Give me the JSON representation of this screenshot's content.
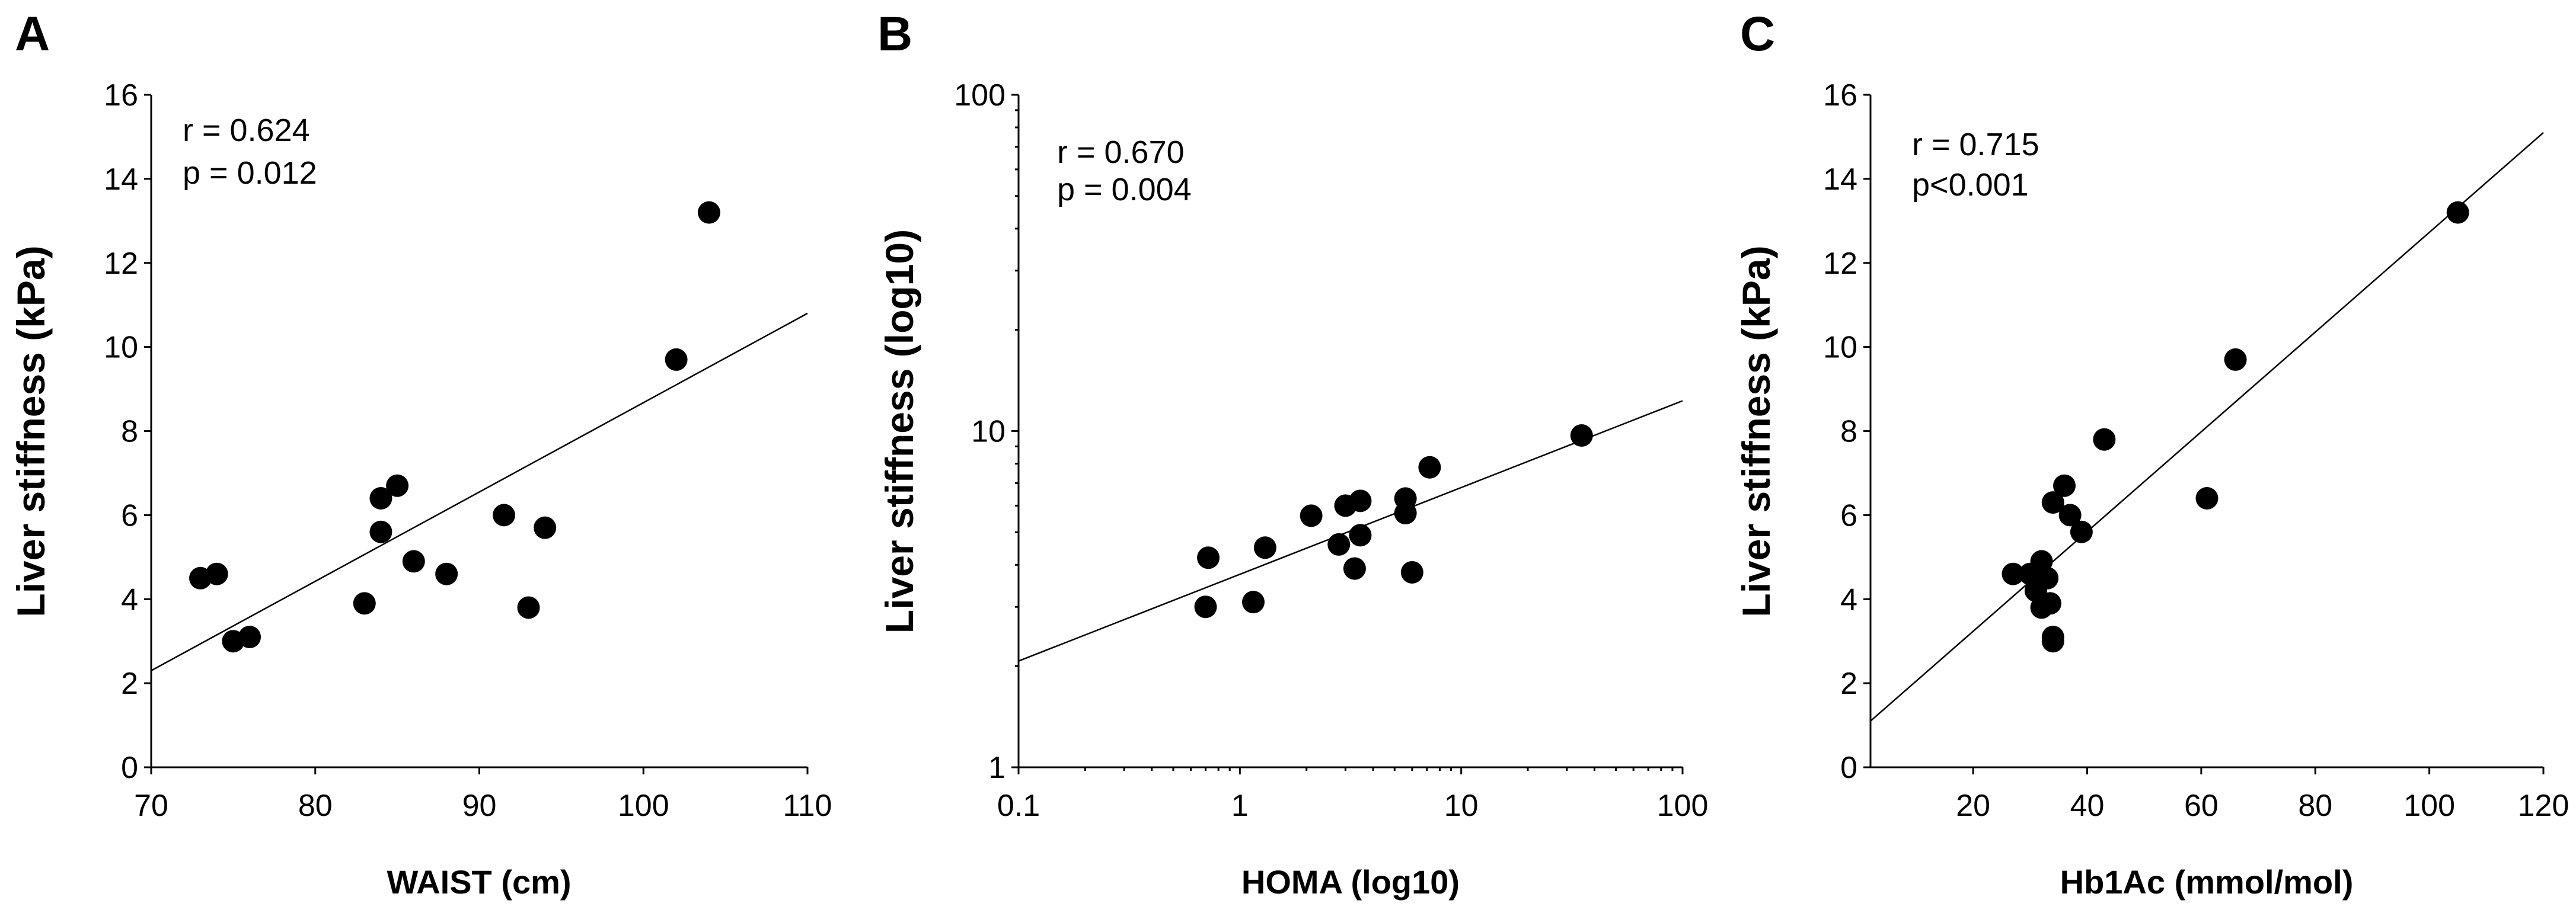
{
  "chart_data": [
    {
      "type": "scatter",
      "panel": "A",
      "title": "",
      "xlabel": "WAIST (cm)",
      "ylabel": "Liver stiffness (kPa)",
      "xscale": "linear",
      "yscale": "linear",
      "xlim": [
        70,
        110
      ],
      "ylim": [
        0,
        16
      ],
      "xticks": [
        "70",
        "80",
        "90",
        "100",
        "110"
      ],
      "yticks": [
        "0",
        "2",
        "4",
        "6",
        "8",
        "10",
        "12",
        "14",
        "16"
      ],
      "annotation": [
        "r = 0.624",
        "p = 0.012"
      ],
      "points": [
        {
          "x": 73,
          "y": 4.5
        },
        {
          "x": 74,
          "y": 4.6
        },
        {
          "x": 75,
          "y": 3.0
        },
        {
          "x": 76,
          "y": 3.1
        },
        {
          "x": 83,
          "y": 3.9
        },
        {
          "x": 84,
          "y": 6.4
        },
        {
          "x": 84,
          "y": 5.6
        },
        {
          "x": 85,
          "y": 6.7
        },
        {
          "x": 86,
          "y": 4.9
        },
        {
          "x": 88,
          "y": 4.6
        },
        {
          "x": 91.5,
          "y": 6.0
        },
        {
          "x": 93,
          "y": 3.8
        },
        {
          "x": 94,
          "y": 5.7
        },
        {
          "x": 102,
          "y": 9.7
        },
        {
          "x": 104,
          "y": 13.2
        }
      ],
      "fit_line": [
        {
          "x": 70,
          "y": 2.3
        },
        {
          "x": 110,
          "y": 10.8
        }
      ]
    },
    {
      "type": "scatter",
      "panel": "B",
      "title": "",
      "xlabel": "HOMA (log10)",
      "ylabel": "Liver stiffness (log10)",
      "xscale": "log",
      "yscale": "log",
      "xlim": [
        0.1,
        100
      ],
      "ylim": [
        1,
        100
      ],
      "xticks": [
        "0.1",
        "1",
        "10",
        "100"
      ],
      "yticks": [
        "1",
        "10",
        "100"
      ],
      "annotation": [
        "r = 0.670",
        "p = 0.004"
      ],
      "points": [
        {
          "x": 0.7,
          "y": 3.0
        },
        {
          "x": 0.72,
          "y": 4.2
        },
        {
          "x": 1.15,
          "y": 3.1
        },
        {
          "x": 1.3,
          "y": 4.5
        },
        {
          "x": 2.1,
          "y": 5.6
        },
        {
          "x": 2.8,
          "y": 4.6
        },
        {
          "x": 3.0,
          "y": 6.0
        },
        {
          "x": 3.3,
          "y": 3.9
        },
        {
          "x": 3.5,
          "y": 4.9
        },
        {
          "x": 3.5,
          "y": 6.2
        },
        {
          "x": 5.6,
          "y": 6.3
        },
        {
          "x": 5.6,
          "y": 5.7
        },
        {
          "x": 6.0,
          "y": 3.8
        },
        {
          "x": 7.2,
          "y": 7.8
        },
        {
          "x": 35,
          "y": 9.7
        }
      ],
      "fit_line": [
        {
          "x": 0.1,
          "y": 2.07
        },
        {
          "x": 100,
          "y": 12.3
        }
      ]
    },
    {
      "type": "scatter",
      "panel": "C",
      "title": "",
      "xlabel": "Hb1Ac (mmol/mol)",
      "ylabel": "Liver stiffness (kPa)",
      "xscale": "linear",
      "yscale": "linear",
      "xlim": [
        2,
        120
      ],
      "ylim": [
        0,
        16
      ],
      "xticks": [
        "20",
        "40",
        "60",
        "80",
        "100",
        "120"
      ],
      "yticks": [
        "0",
        "2",
        "4",
        "6",
        "8",
        "10",
        "12",
        "14",
        "16"
      ],
      "annotation": [
        "r = 0.715",
        "p<0.001"
      ],
      "points": [
        {
          "x": 27,
          "y": 4.6
        },
        {
          "x": 30,
          "y": 4.6
        },
        {
          "x": 31,
          "y": 4.2
        },
        {
          "x": 32,
          "y": 4.9
        },
        {
          "x": 32,
          "y": 3.8
        },
        {
          "x": 33,
          "y": 4.5
        },
        {
          "x": 33.5,
          "y": 3.9
        },
        {
          "x": 34,
          "y": 3.0
        },
        {
          "x": 34,
          "y": 3.1
        },
        {
          "x": 34,
          "y": 6.3
        },
        {
          "x": 36,
          "y": 6.7
        },
        {
          "x": 37,
          "y": 6.0
        },
        {
          "x": 39,
          "y": 5.6
        },
        {
          "x": 43,
          "y": 7.8
        },
        {
          "x": 61,
          "y": 6.4
        },
        {
          "x": 66,
          "y": 9.7
        },
        {
          "x": 105,
          "y": 13.2
        }
      ],
      "fit_line": [
        {
          "x": 2,
          "y": 1.1
        },
        {
          "x": 120,
          "y": 15.1
        }
      ]
    }
  ]
}
